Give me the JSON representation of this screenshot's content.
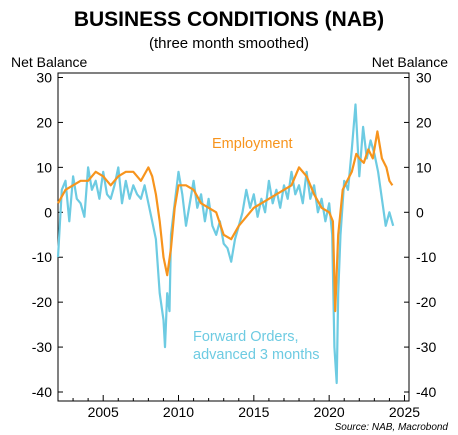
{
  "chart_data": {
    "type": "line",
    "title": "BUSINESS CONDITIONS (NAB)",
    "subtitle": "(three month smoothed)",
    "ylabel_left": "Net Balance",
    "ylabel_right": "Net Balance",
    "source": "Source: NAB, Macrobond",
    "xlim": [
      2002.0,
      2025.3
    ],
    "ylim": [
      -42,
      31
    ],
    "x_ticks": [
      2005,
      2010,
      2015,
      2020,
      2025
    ],
    "x_tick_labels": [
      "2005",
      "2010",
      "2015",
      "2020",
      "2025"
    ],
    "y_ticks": [
      -40,
      -30,
      -20,
      -10,
      0,
      10,
      20,
      30
    ],
    "y_tick_labels": [
      "-40",
      "-30",
      "-20",
      "-10",
      "0",
      "10",
      "20",
      "30"
    ],
    "grid": false,
    "series": [
      {
        "name": "Employment",
        "color": "#f7941d",
        "label": "Employment",
        "x": [
          2002.0,
          2002.5,
          2003.0,
          2003.5,
          2004.0,
          2004.5,
          2005.0,
          2005.5,
          2006.0,
          2006.5,
          2007.0,
          2007.5,
          2008.0,
          2008.25,
          2008.5,
          2008.75,
          2009.0,
          2009.25,
          2009.5,
          2009.75,
          2010.0,
          2010.5,
          2011.0,
          2011.5,
          2012.0,
          2012.5,
          2013.0,
          2013.5,
          2014.0,
          2014.5,
          2015.0,
          2015.5,
          2016.0,
          2016.5,
          2017.0,
          2017.5,
          2018.0,
          2018.5,
          2019.0,
          2019.5,
          2020.0,
          2020.25,
          2020.4,
          2020.6,
          2020.9,
          2021.2,
          2021.5,
          2021.8,
          2022.0,
          2022.3,
          2022.6,
          2022.9,
          2023.2,
          2023.5,
          2023.8,
          2024.0,
          2024.2
        ],
        "y": [
          2,
          5,
          6,
          7,
          7,
          9,
          8,
          6,
          8,
          9,
          9,
          7,
          10,
          8,
          4,
          -2,
          -10,
          -14,
          -8,
          1,
          6,
          6,
          5,
          2,
          1,
          0,
          -5,
          -6,
          -3,
          -1,
          1,
          2,
          3,
          4,
          5,
          6,
          10,
          8,
          4,
          1,
          0,
          -2,
          -22,
          -5,
          5,
          7,
          9,
          13,
          12,
          11,
          14,
          12,
          18,
          12,
          10,
          7,
          6
        ]
      },
      {
        "name": "Forward Orders, advanced 3 months",
        "color": "#6dcbe2",
        "label": "Forward Orders,\nadvanced 3 months",
        "x": [
          2002.0,
          2002.25,
          2002.5,
          2002.75,
          2003.0,
          2003.25,
          2003.5,
          2003.75,
          2004.0,
          2004.25,
          2004.5,
          2004.75,
          2005.0,
          2005.25,
          2005.5,
          2005.75,
          2006.0,
          2006.25,
          2006.5,
          2006.75,
          2007.0,
          2007.25,
          2007.5,
          2007.75,
          2008.0,
          2008.25,
          2008.5,
          2008.75,
          2009.0,
          2009.1,
          2009.25,
          2009.4,
          2009.5,
          2009.75,
          2010.0,
          2010.25,
          2010.5,
          2010.75,
          2011.0,
          2011.25,
          2011.5,
          2011.75,
          2012.0,
          2012.25,
          2012.5,
          2012.75,
          2013.0,
          2013.25,
          2013.5,
          2013.75,
          2014.0,
          2014.25,
          2014.5,
          2014.75,
          2015.0,
          2015.25,
          2015.5,
          2015.75,
          2016.0,
          2016.25,
          2016.5,
          2016.75,
          2017.0,
          2017.25,
          2017.5,
          2017.75,
          2018.0,
          2018.25,
          2018.5,
          2018.75,
          2019.0,
          2019.25,
          2019.5,
          2019.75,
          2020.0,
          2020.2,
          2020.35,
          2020.5,
          2020.6,
          2020.75,
          2021.0,
          2021.25,
          2021.5,
          2021.75,
          2022.0,
          2022.25,
          2022.5,
          2022.75,
          2023.0,
          2023.25,
          2023.5,
          2023.75,
          2024.0,
          2024.25
        ],
        "y": [
          -10,
          5,
          7,
          -2,
          8,
          3,
          2,
          -1,
          10,
          5,
          7,
          3,
          9,
          4,
          3,
          6,
          10,
          2,
          7,
          3,
          6,
          4,
          3,
          6,
          2,
          -2,
          -6,
          -18,
          -24,
          -30,
          -18,
          -22,
          -5,
          2,
          9,
          4,
          -3,
          2,
          7,
          1,
          4,
          -2,
          3,
          -3,
          -5,
          -2,
          -7,
          -8,
          -11,
          -6,
          -3,
          0,
          5,
          1,
          4,
          -1,
          3,
          0,
          7,
          2,
          5,
          1,
          6,
          3,
          9,
          4,
          6,
          2,
          9,
          3,
          6,
          0,
          3,
          -2,
          2,
          -5,
          -30,
          -38,
          -18,
          -5,
          7,
          5,
          14,
          24,
          8,
          19,
          12,
          16,
          13,
          9,
          3,
          -3,
          0,
          -3
        ]
      }
    ]
  }
}
